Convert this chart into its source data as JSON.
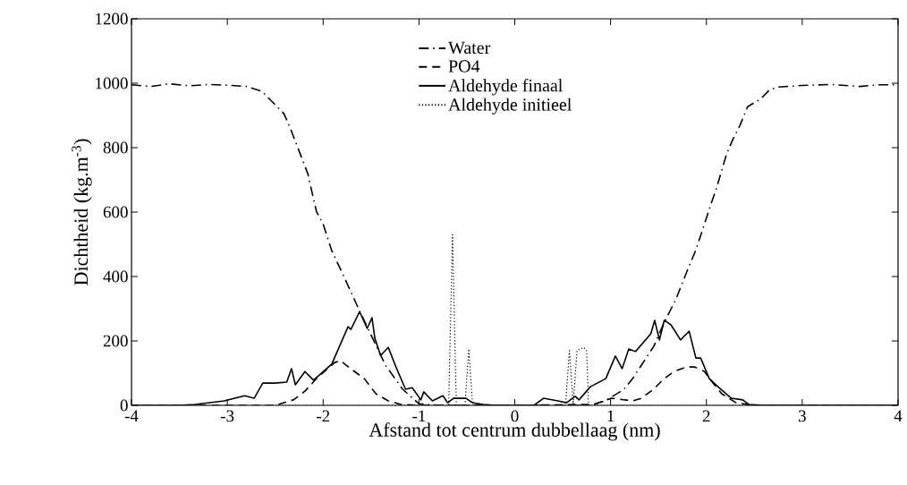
{
  "chart_data": {
    "type": "line",
    "xlabel": "Afstand tot centrum dubbellaag (nm)",
    "ylabel": "Dichtheid (kg.m$^{-3}$)",
    "xlim": [
      -4,
      4
    ],
    "ylim": [
      0,
      1200
    ],
    "xticks": [
      -4,
      -3,
      -2,
      -1,
      0,
      1,
      2,
      3,
      4
    ],
    "yticks": [
      0,
      200,
      400,
      600,
      800,
      1000,
      1200
    ],
    "legend": "top",
    "grid": false,
    "series": [
      {
        "name": "Water",
        "color": "#000000",
        "line_style": "dashdot",
        "x": [
          -4,
          -3.8,
          -3.6,
          -3.4,
          -3.2,
          -3.0,
          -2.8,
          -2.64,
          -2.41,
          -2.35,
          -2.21,
          -2.16,
          -2.07,
          -2.0,
          -1.91,
          -1.8,
          -1.63,
          -1.35,
          -1.17,
          -1.0,
          -0.8,
          -0.4,
          0,
          0.4,
          0.8,
          0.95,
          1.14,
          1.23,
          1.45,
          1.56,
          1.68,
          1.82,
          1.88,
          1.94,
          2.05,
          2.1,
          2.21,
          2.27,
          2.35,
          2.43,
          2.57,
          2.66,
          2.75,
          3.0,
          3.3,
          3.6,
          3.8,
          4
        ],
        "values": [
          995,
          990,
          998,
          992,
          996,
          994,
          990,
          975,
          906,
          866,
          758,
          719,
          602,
          563,
          480,
          411,
          300,
          125,
          50,
          5,
          0,
          0,
          0,
          0,
          0,
          15,
          50,
          83,
          183,
          258,
          328,
          433,
          475,
          527,
          627,
          669,
          780,
          822,
          869,
          927,
          952,
          980,
          988,
          993,
          996,
          990,
          995,
          995
        ]
      },
      {
        "name": "PO4",
        "color": "#000000",
        "line_style": "dashed",
        "x": [
          -4,
          -2.5,
          -2.31,
          -2.19,
          -2.07,
          -1.88,
          -1.82,
          -1.7,
          -1.57,
          -1.45,
          -1.32,
          -1.19,
          -1.0,
          0,
          0.82,
          1.01,
          1.23,
          1.32,
          1.45,
          1.54,
          1.66,
          1.79,
          1.88,
          1.98,
          2.07,
          2.16,
          2.31,
          2.5,
          4
        ],
        "values": [
          0,
          0,
          17,
          44,
          83,
          133,
          139,
          111,
          83,
          36,
          14,
          3,
          0,
          0,
          3,
          22,
          14,
          22,
          50,
          78,
          105,
          119,
          119,
          105,
          69,
          36,
          8,
          0,
          0
        ]
      },
      {
        "name": "Aldehyde finaal",
        "color": "#000000",
        "line_style": "solid",
        "x": [
          -4,
          -3.5,
          -3.34,
          -3.03,
          -2.82,
          -2.72,
          -2.63,
          -2.5,
          -2.38,
          -2.33,
          -2.29,
          -2.19,
          -2.1,
          -1.91,
          -1.74,
          -1.71,
          -1.62,
          -1.54,
          -1.49,
          -1.46,
          -1.4,
          -1.32,
          -1.24,
          -1.14,
          -1.07,
          -0.98,
          -0.95,
          -0.86,
          -0.75,
          -0.7,
          -0.64,
          -0.51,
          -0.44,
          -0.33,
          -0.2,
          0.2,
          0.3,
          0.45,
          0.54,
          0.63,
          0.67,
          0.79,
          0.95,
          1.05,
          1.12,
          1.19,
          1.26,
          1.42,
          1.46,
          1.51,
          1.56,
          1.63,
          1.73,
          1.82,
          1.89,
          1.94,
          2.03,
          2.13,
          2.26,
          2.38,
          2.44,
          2.6,
          4
        ],
        "values": [
          0,
          0,
          3,
          14,
          30,
          22,
          69,
          69,
          72,
          114,
          64,
          105,
          78,
          128,
          244,
          236,
          291,
          239,
          272,
          208,
          155,
          180,
          119,
          50,
          55,
          17,
          42,
          14,
          30,
          8,
          22,
          22,
          8,
          3,
          0,
          0,
          22,
          14,
          8,
          28,
          17,
          58,
          83,
          153,
          114,
          175,
          167,
          222,
          264,
          203,
          264,
          250,
          203,
          230,
          147,
          147,
          83,
          55,
          22,
          17,
          3,
          0,
          0
        ]
      },
      {
        "name": "Aldehyde initieel",
        "color": "#000000",
        "line_style": "dotted",
        "x": [
          -4,
          -0.69,
          -0.65,
          -0.61,
          -0.52,
          -0.48,
          -0.44,
          0.53,
          0.57,
          0.61,
          0.65,
          0.72,
          0.75,
          0.77,
          4
        ],
        "values": [
          0,
          0,
          530,
          0,
          0,
          175,
          0,
          0,
          170,
          5,
          170,
          180,
          170,
          0,
          0
        ]
      }
    ]
  }
}
